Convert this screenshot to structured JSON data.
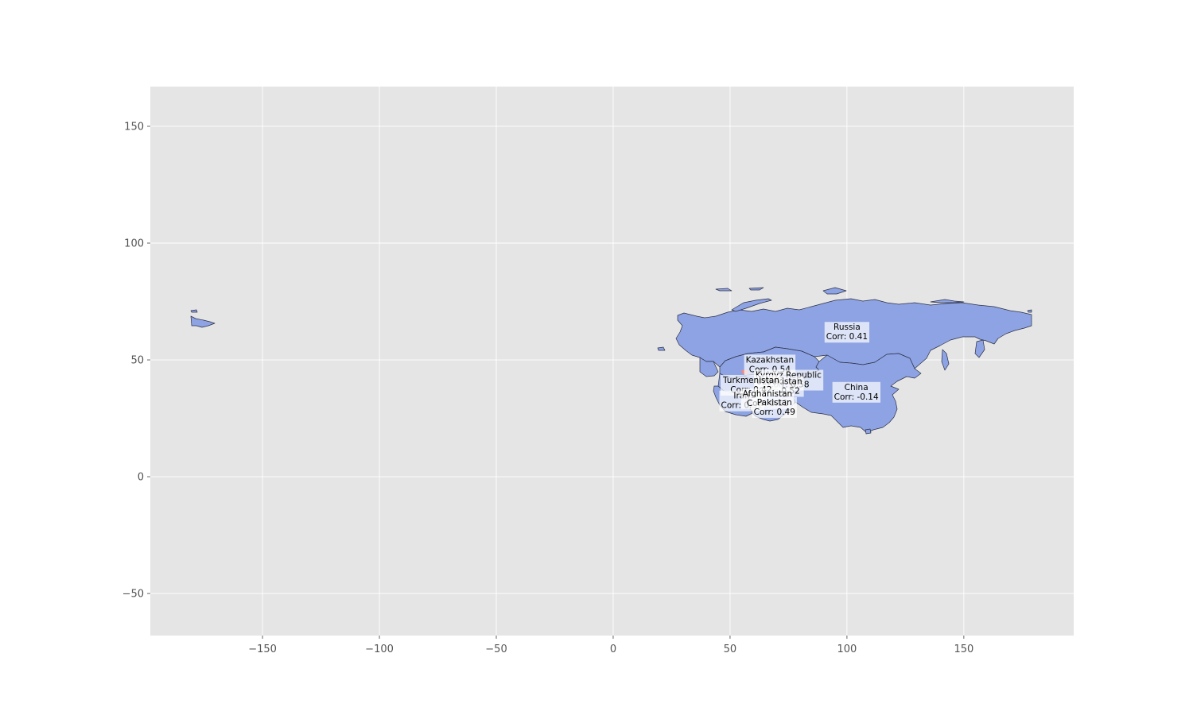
{
  "chart_data": {
    "type": "choropleth-map",
    "title": "",
    "xlabel": "",
    "ylabel": "",
    "xlim": [
      -198,
      197
    ],
    "ylim": [
      -68,
      167
    ],
    "x_ticks": [
      -150,
      -100,
      -50,
      0,
      50,
      100,
      150
    ],
    "y_ticks": [
      -50,
      0,
      50,
      100,
      150
    ],
    "x_tick_labels": [
      "−150",
      "−100",
      "−50",
      "0",
      "50",
      "100",
      "150"
    ],
    "y_tick_labels": [
      "−50",
      "0",
      "50",
      "100",
      "150"
    ],
    "grid": true,
    "colors": {
      "axes_background": "#e5e5e5",
      "grid": "#ffffff",
      "land_fill": "#8ea3e3",
      "border": "#2b2f45",
      "highlight": "#f08a7e",
      "label_box": "#ffffff"
    },
    "countries": [
      {
        "name": "Russia",
        "corr_label": "Corr: 0.41",
        "label_lon": 100,
        "label_lat": 62
      },
      {
        "name": "Kazakhstan",
        "corr_label": "Corr: 0.54",
        "label_lon": 67,
        "label_lat": 48
      },
      {
        "name": "Kyrgyz Republic",
        "corr_label": "Corr: 0.58",
        "label_lon": 75,
        "label_lat": 41.5
      },
      {
        "name": "Uzbekistan",
        "corr_label": "Corr: 0.52",
        "label_lon": 71,
        "label_lat": 38.8
      },
      {
        "name": "Turkmenistan",
        "corr_label": "Corr: 0.42",
        "label_lon": 59,
        "label_lat": 39.3
      },
      {
        "name": "China",
        "corr_label": "Corr: -0.14",
        "label_lon": 104,
        "label_lat": 36.3
      },
      {
        "name": "Iran",
        "corr_label": "Corr: 0.31",
        "label_lon": 55,
        "label_lat": 32.6
      },
      {
        "name": "Afghanistan",
        "corr_label": "Corr: 0.11",
        "label_lon": 66,
        "label_lat": 33.6
      },
      {
        "name": "Pakistan",
        "corr_label": "Corr: 0.49",
        "label_lon": 69,
        "label_lat": 29.8
      }
    ]
  }
}
